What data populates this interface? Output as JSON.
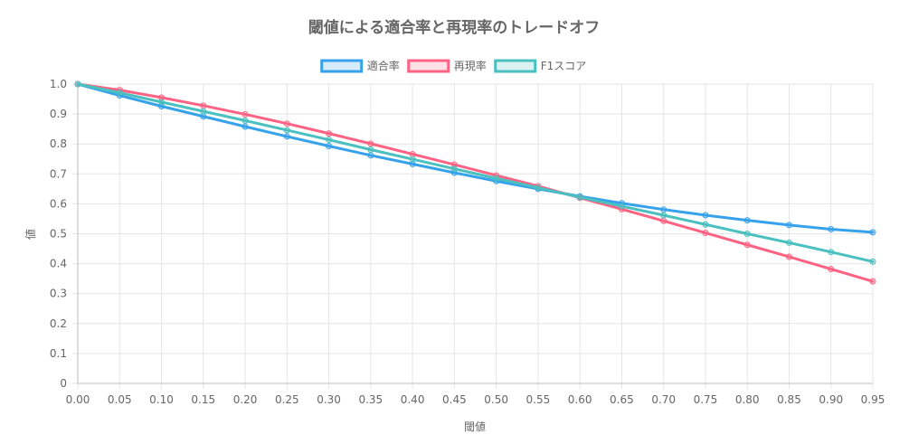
{
  "chart_data": {
    "type": "line",
    "title": "閾値による適合率と再現率のトレードオフ",
    "xlabel": "閾値",
    "ylabel": "値",
    "x": [
      0.0,
      0.05,
      0.1,
      0.15,
      0.2,
      0.25,
      0.3,
      0.35,
      0.4,
      0.45,
      0.5,
      0.55,
      0.6,
      0.65,
      0.7,
      0.75,
      0.8,
      0.85,
      0.9,
      0.95
    ],
    "x_tick_labels": [
      "0.00",
      "0.05",
      "0.10",
      "0.15",
      "0.20",
      "0.25",
      "0.30",
      "0.35",
      "0.40",
      "0.45",
      "0.50",
      "0.55",
      "0.60",
      "0.65",
      "0.70",
      "0.75",
      "0.80",
      "0.85",
      "0.90",
      "0.95"
    ],
    "y_ticks": [
      0,
      0.1,
      0.2,
      0.3,
      0.4,
      0.5,
      0.6,
      0.7,
      0.8,
      0.9,
      1.0
    ],
    "y_tick_labels": [
      "0",
      "0.1",
      "0.2",
      "0.3",
      "0.4",
      "0.5",
      "0.6",
      "0.7",
      "0.8",
      "0.9",
      "1.0"
    ],
    "ylim": [
      0,
      1
    ],
    "grid": true,
    "legend_position": "top",
    "series": [
      {
        "name": "適合率",
        "color": "#36a2eb",
        "fill": "rgba(54,162,235,0.2)",
        "values": [
          1.0,
          0.962,
          0.926,
          0.892,
          0.858,
          0.825,
          0.793,
          0.762,
          0.733,
          0.704,
          0.676,
          0.65,
          0.625,
          0.602,
          0.581,
          0.562,
          0.545,
          0.529,
          0.515,
          0.505
        ]
      },
      {
        "name": "再現率",
        "color": "#ff6384",
        "fill": "rgba(255,99,132,0.2)",
        "values": [
          1.0,
          0.98,
          0.955,
          0.928,
          0.899,
          0.868,
          0.835,
          0.801,
          0.766,
          0.731,
          0.695,
          0.659,
          0.62,
          0.582,
          0.543,
          0.503,
          0.463,
          0.423,
          0.382,
          0.341
        ]
      },
      {
        "name": "F1スコア",
        "color": "#4bc0c0",
        "fill": "rgba(75,192,192,0.2)",
        "values": [
          1.0,
          0.971,
          0.94,
          0.909,
          0.878,
          0.846,
          0.814,
          0.781,
          0.749,
          0.717,
          0.685,
          0.654,
          0.622,
          0.592,
          0.562,
          0.531,
          0.5,
          0.47,
          0.439,
          0.407
        ]
      }
    ]
  }
}
